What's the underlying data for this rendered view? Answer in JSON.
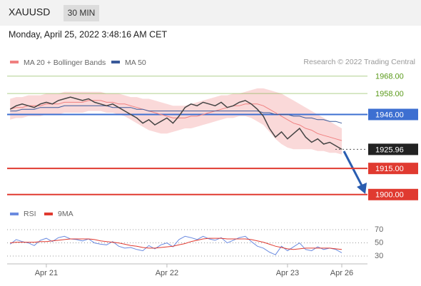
{
  "header": {
    "symbol": "XAUUSD",
    "timeframe": "30 MIN",
    "timestamp": "Monday, April 25, 2022 3:48:16 AM CET",
    "credit": "Research © 2022 Trading Central"
  },
  "chart_data": [
    {
      "type": "line",
      "name": "Price",
      "ylim": [
        1895,
        1972
      ],
      "price": {
        "color": "#444444",
        "values": [
          1949,
          1951,
          1952,
          1951,
          1950,
          1952,
          1953,
          1952,
          1954,
          1955,
          1956,
          1955,
          1954,
          1955,
          1953,
          1952,
          1951,
          1952,
          1950,
          1948,
          1946,
          1944,
          1941,
          1943,
          1940,
          1942,
          1944,
          1941,
          1945,
          1950,
          1952,
          1951,
          1953,
          1952,
          1951,
          1953,
          1950,
          1951,
          1953,
          1954,
          1952,
          1949,
          1945,
          1938,
          1933,
          1936,
          1932,
          1935,
          1938,
          1933,
          1930,
          1932,
          1929,
          1930,
          1928,
          1925.96,
          null,
          null,
          null,
          null
        ]
      },
      "series": [
        {
          "name": "MA 20 + Bollinger Bands",
          "color": "#f08080",
          "values": [
            1949,
            1950,
            1950,
            1951,
            1951,
            1951,
            1952,
            1952,
            1952,
            1953,
            1953,
            1953,
            1953,
            1954,
            1954,
            1954,
            1953,
            1953,
            1952,
            1952,
            1951,
            1950,
            1949,
            1948,
            1947,
            1946,
            1945,
            1944,
            1944,
            1944,
            1945,
            1945,
            1946,
            1947,
            1948,
            1949,
            1950,
            1951,
            1951,
            1952,
            1952,
            1952,
            1951,
            1949,
            1947,
            1945,
            1943,
            1941,
            1940,
            1938,
            1937,
            1935,
            1934,
            1933,
            1932,
            1931,
            null,
            null,
            null,
            null
          ],
          "upper": [
            1955,
            1956,
            1956,
            1957,
            1957,
            1957,
            1958,
            1958,
            1958,
            1959,
            1959,
            1959,
            1959,
            1959,
            1959,
            1959,
            1958,
            1958,
            1958,
            1957,
            1956,
            1956,
            1955,
            1955,
            1954,
            1953,
            1952,
            1951,
            1951,
            1951,
            1952,
            1953,
            1954,
            1955,
            1956,
            1957,
            1957,
            1958,
            1958,
            1959,
            1960,
            1961,
            1961,
            1960,
            1959,
            1958,
            1956,
            1954,
            1952,
            1950,
            1948,
            1946,
            1944,
            1942,
            1940,
            1938,
            null,
            null,
            null,
            null
          ],
          "lower": [
            1943,
            1944,
            1944,
            1945,
            1945,
            1945,
            1946,
            1946,
            1946,
            1947,
            1947,
            1947,
            1947,
            1948,
            1948,
            1948,
            1947,
            1947,
            1946,
            1945,
            1943,
            1941,
            1939,
            1937,
            1936,
            1935,
            1935,
            1936,
            1937,
            1938,
            1938,
            1939,
            1940,
            1941,
            1942,
            1943,
            1944,
            1944,
            1945,
            1945,
            1944,
            1942,
            1940,
            1936,
            1932,
            1929,
            1927,
            1926,
            1926,
            1926,
            1926,
            1925,
            1925,
            1924,
            1924,
            1923,
            null,
            null,
            null,
            null
          ]
        },
        {
          "name": "MA 50",
          "color": "#3a5a9a",
          "values": [
            1948,
            1948,
            1949,
            1949,
            1949,
            1950,
            1950,
            1950,
            1950,
            1951,
            1951,
            1951,
            1951,
            1951,
            1951,
            1951,
            1951,
            1950,
            1950,
            1950,
            1950,
            1949,
            1949,
            1948,
            1948,
            1948,
            1948,
            1948,
            1948,
            1948,
            1948,
            1948,
            1948,
            1948,
            1948,
            1948,
            1948,
            1948,
            1948,
            1948,
            1948,
            1948,
            1947,
            1947,
            1946,
            1946,
            1946,
            1945,
            1945,
            1944,
            1944,
            1943,
            1943,
            1942,
            1942,
            1941,
            null,
            null,
            null,
            null
          ]
        }
      ],
      "levels": [
        {
          "value": 1968,
          "label": "1968.00",
          "color": "#7cb342",
          "style": "text"
        },
        {
          "value": 1958,
          "label": "1958.00",
          "color": "#7cb342",
          "style": "text"
        },
        {
          "value": 1946,
          "label": "1946.00",
          "color": "#3d6fd1",
          "style": "box"
        },
        {
          "value": 1925.96,
          "label": "1925.96",
          "color": "#222222",
          "style": "dotted"
        },
        {
          "value": 1915,
          "label": "1915.00",
          "color": "#e03a30",
          "style": "box"
        },
        {
          "value": 1900,
          "label": "1900.00",
          "color": "#e03a30",
          "style": "box"
        }
      ]
    },
    {
      "type": "line",
      "name": "RSI panel",
      "categories": [
        null,
        null,
        null,
        null,
        null,
        null,
        "Apr 21",
        null,
        null,
        null,
        null,
        null,
        null,
        null,
        null,
        null,
        null,
        null,
        null,
        null,
        null,
        null,
        null,
        null,
        null,
        null,
        "Apr 22",
        null,
        null,
        null,
        null,
        null,
        null,
        null,
        null,
        null,
        null,
        null,
        null,
        null,
        null,
        null,
        null,
        null,
        null,
        null,
        "Apr 23",
        null,
        null,
        null,
        null,
        null,
        null,
        null,
        null,
        "Apr 26",
        null,
        null,
        null,
        null
      ],
      "ylim": [
        20,
        80
      ],
      "yticks": [
        70,
        50,
        30
      ],
      "grid": true,
      "series": [
        {
          "name": "RSI",
          "color": "#6b8be0",
          "values": [
            48,
            55,
            52,
            50,
            46,
            54,
            57,
            52,
            58,
            60,
            56,
            55,
            53,
            56,
            50,
            48,
            47,
            52,
            45,
            42,
            43,
            40,
            38,
            46,
            41,
            47,
            50,
            44,
            55,
            60,
            58,
            55,
            60,
            56,
            54,
            58,
            50,
            54,
            58,
            60,
            52,
            45,
            42,
            36,
            32,
            45,
            38,
            44,
            50,
            40,
            38,
            44,
            40,
            42,
            40,
            35,
            null,
            null,
            null,
            null
          ]
        },
        {
          "name": "9MA",
          "color": "#e03a30",
          "values": [
            50,
            51,
            51,
            51,
            51,
            52,
            52,
            53,
            54,
            55,
            56,
            56,
            56,
            56,
            55,
            53,
            52,
            51,
            50,
            48,
            46,
            45,
            43,
            42,
            42,
            43,
            44,
            45,
            47,
            49,
            52,
            54,
            56,
            57,
            57,
            57,
            56,
            56,
            56,
            56,
            55,
            53,
            51,
            48,
            45,
            43,
            41,
            40,
            41,
            42,
            42,
            42,
            42,
            42,
            41,
            40,
            null,
            null,
            null,
            null
          ]
        }
      ]
    }
  ]
}
